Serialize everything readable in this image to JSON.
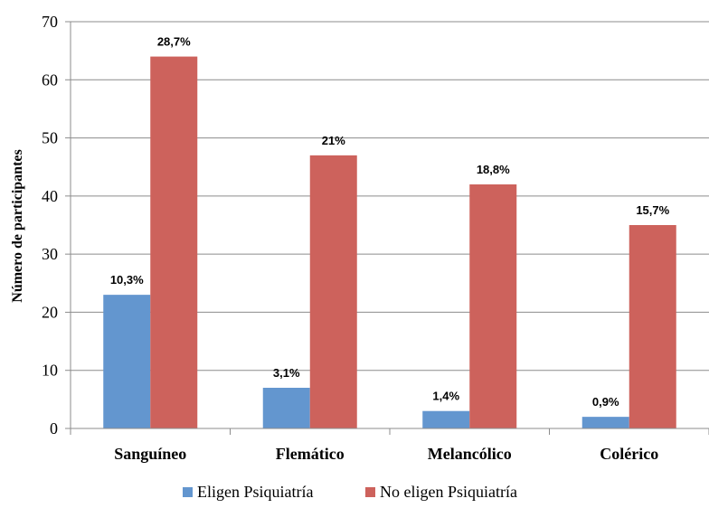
{
  "chart_data": {
    "type": "bar",
    "categories": [
      "Sanguíneo",
      "Flemático",
      "Melancólico",
      "Colérico"
    ],
    "series": [
      {
        "name": "Eligen Psiquiatría",
        "color": "#6396CF",
        "values": [
          23,
          7,
          3,
          2
        ],
        "labels": [
          "10,3%",
          "3,1%",
          "1,4%",
          "0,9%"
        ]
      },
      {
        "name": "No eligen Psiquiatría",
        "color": "#CD625C",
        "values": [
          64,
          47,
          42,
          35
        ],
        "labels": [
          "28,7%",
          "21%",
          "18,8%",
          "15,7%"
        ]
      }
    ],
    "ylabel": "Número de participantes",
    "xlabel": "",
    "ylim": [
      0,
      70
    ],
    "yticks": [
      0,
      10,
      20,
      30,
      40,
      50,
      60,
      70
    ],
    "grid": true,
    "legend": "bottom"
  }
}
